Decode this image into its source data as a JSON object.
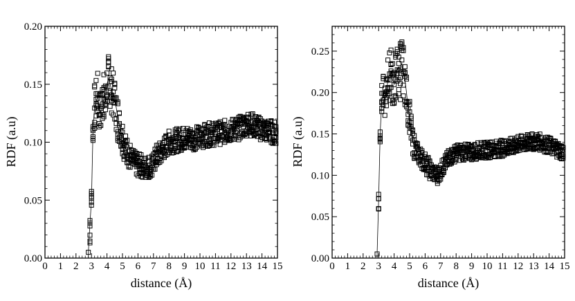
{
  "chart_data": [
    {
      "type": "scatter",
      "title": "",
      "xlabel": "distance (Å)",
      "ylabel": "RDF (a.u)",
      "xlim": [
        0,
        15
      ],
      "ylim": [
        0,
        0.2
      ],
      "xticks": [
        "0",
        "1",
        "2",
        "3",
        "4",
        "5",
        "6",
        "7",
        "8",
        "9",
        "10",
        "11",
        "12",
        "13",
        "14",
        "15"
      ],
      "yticks": [
        "0.00",
        "0.05",
        "0.10",
        "0.15",
        "0.20"
      ],
      "grid": false,
      "marker": "open-square",
      "color": "#000000",
      "series": [
        {
          "x": [
            2.8,
            2.9,
            3.0,
            3.1,
            3.2,
            3.3,
            3.4,
            3.5,
            3.6,
            3.7,
            3.8,
            3.9,
            4.0,
            4.1,
            4.2,
            4.3,
            4.4,
            4.5,
            4.6,
            4.7,
            4.8,
            4.9,
            5.0,
            5.2,
            5.4,
            5.6,
            5.8,
            6.0,
            6.2,
            6.4,
            6.6,
            6.8,
            7.0,
            7.2,
            7.4,
            7.6,
            7.8,
            8.0,
            8.3,
            8.6,
            8.9,
            9.2,
            9.5,
            9.8,
            10.1,
            10.4,
            10.7,
            11.0,
            11.3,
            11.6,
            11.9,
            12.2,
            12.5,
            12.8,
            13.1,
            13.4,
            13.7,
            14.0,
            14.3,
            14.6,
            14.9
          ],
          "y": [
            0.005,
            0.03,
            0.05,
            0.11,
            0.13,
            0.135,
            0.14,
            0.13,
            0.125,
            0.135,
            0.14,
            0.135,
            0.15,
            0.155,
            0.15,
            0.145,
            0.14,
            0.135,
            0.13,
            0.12,
            0.115,
            0.11,
            0.105,
            0.095,
            0.09,
            0.085,
            0.082,
            0.08,
            0.08,
            0.078,
            0.078,
            0.08,
            0.082,
            0.088,
            0.09,
            0.093,
            0.097,
            0.1,
            0.101,
            0.102,
            0.103,
            0.104,
            0.103,
            0.104,
            0.105,
            0.106,
            0.107,
            0.107,
            0.108,
            0.109,
            0.11,
            0.111,
            0.112,
            0.114,
            0.116,
            0.115,
            0.113,
            0.111,
            0.11,
            0.109,
            0.108
          ],
          "spread": [
            0,
            0.02,
            0.01,
            0.01,
            0.02,
            0.02,
            0.02,
            0.02,
            0.02,
            0.02,
            0.02,
            0.02,
            0.02,
            0.02,
            0.02,
            0.02,
            0.02,
            0.02,
            0.02,
            0.02,
            0.015,
            0.015,
            0.015,
            0.012,
            0.012,
            0.01,
            0.01,
            0.01,
            0.01,
            0.01,
            0.01,
            0.01,
            0.01,
            0.01,
            0.01,
            0.01,
            0.01,
            0.01,
            0.01,
            0.01,
            0.01,
            0.01,
            0.01,
            0.01,
            0.01,
            0.01,
            0.01,
            0.01,
            0.01,
            0.01,
            0.01,
            0.01,
            0.01,
            0.01,
            0.01,
            0.01,
            0.01,
            0.01,
            0.01,
            0.01,
            0.01
          ]
        }
      ]
    },
    {
      "type": "scatter",
      "title": "",
      "xlabel": "distance (Å)",
      "ylabel": "RDF (a.u)",
      "xlim": [
        0,
        15
      ],
      "ylim": [
        0,
        0.28
      ],
      "xticks": [
        "0",
        "1",
        "2",
        "3",
        "4",
        "5",
        "6",
        "7",
        "8",
        "9",
        "10",
        "11",
        "12",
        "13",
        "14",
        "15"
      ],
      "yticks": [
        "0.00",
        "0.05",
        "0.10",
        "0.15",
        "0.20",
        "0.25"
      ],
      "grid": false,
      "marker": "open-square",
      "color": "#000000",
      "series": [
        {
          "x": [
            2.9,
            3.0,
            3.1,
            3.2,
            3.3,
            3.4,
            3.5,
            3.6,
            3.7,
            3.8,
            3.9,
            4.0,
            4.1,
            4.2,
            4.3,
            4.4,
            4.5,
            4.6,
            4.7,
            4.8,
            4.9,
            5.0,
            5.2,
            5.4,
            5.6,
            5.8,
            6.0,
            6.2,
            6.4,
            6.6,
            6.8,
            7.0,
            7.2,
            7.4,
            7.6,
            7.8,
            8.0,
            8.3,
            8.6,
            8.9,
            9.2,
            9.5,
            9.8,
            10.1,
            10.4,
            10.7,
            11.0,
            11.3,
            11.6,
            11.9,
            12.2,
            12.5,
            12.8,
            13.1,
            13.4,
            13.7,
            14.0,
            14.3,
            14.6,
            14.9
          ],
          "y": [
            0.005,
            0.07,
            0.15,
            0.19,
            0.2,
            0.19,
            0.2,
            0.215,
            0.22,
            0.225,
            0.215,
            0.21,
            0.22,
            0.23,
            0.22,
            0.23,
            0.235,
            0.225,
            0.215,
            0.2,
            0.18,
            0.17,
            0.14,
            0.13,
            0.125,
            0.12,
            0.115,
            0.11,
            0.105,
            0.102,
            0.1,
            0.105,
            0.112,
            0.118,
            0.122,
            0.125,
            0.127,
            0.128,
            0.128,
            0.128,
            0.129,
            0.13,
            0.13,
            0.131,
            0.132,
            0.132,
            0.133,
            0.134,
            0.135,
            0.137,
            0.138,
            0.139,
            0.14,
            0.141,
            0.14,
            0.138,
            0.136,
            0.134,
            0.131,
            0.128
          ],
          "spread": [
            0,
            0.02,
            0.01,
            0.02,
            0.02,
            0.02,
            0.02,
            0.03,
            0.03,
            0.03,
            0.03,
            0.03,
            0.03,
            0.03,
            0.03,
            0.04,
            0.03,
            0.03,
            0.03,
            0.02,
            0.02,
            0.02,
            0.015,
            0.012,
            0.012,
            0.012,
            0.012,
            0.012,
            0.01,
            0.01,
            0.01,
            0.01,
            0.01,
            0.01,
            0.01,
            0.01,
            0.01,
            0.01,
            0.01,
            0.01,
            0.01,
            0.01,
            0.01,
            0.01,
            0.01,
            0.01,
            0.01,
            0.01,
            0.01,
            0.01,
            0.01,
            0.01,
            0.01,
            0.01,
            0.01,
            0.01,
            0.01,
            0.01,
            0.01,
            0.01
          ]
        }
      ]
    }
  ]
}
